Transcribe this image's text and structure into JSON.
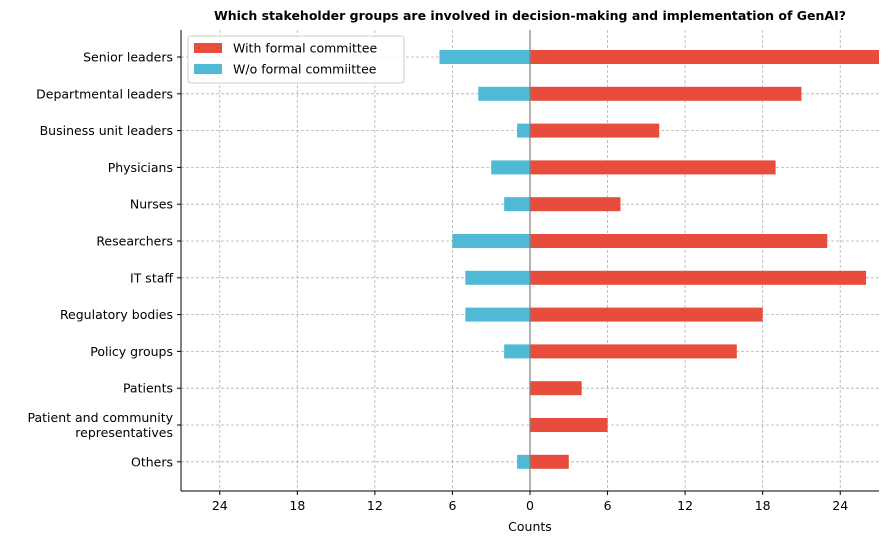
{
  "chart_data": {
    "type": "bar",
    "orientation": "horizontal-diverging",
    "title": "Which stakeholder groups are involved in decision-making and implementation of GenAI?",
    "xlabel": "Counts",
    "ylabel": "",
    "categories": [
      "Senior leaders",
      "Departmental leaders",
      "Business unit leaders",
      "Physicians",
      "Nurses",
      "Researchers",
      "IT staff",
      "Regulatory bodies",
      "Policy groups",
      "Patients",
      [
        "Patient and community",
        "representatives"
      ],
      "Others"
    ],
    "series": [
      {
        "name": "With formal committee",
        "color": "#e74c3c",
        "direction": "right",
        "values": [
          27,
          21,
          10,
          19,
          7,
          23,
          26,
          18,
          16,
          4,
          6,
          3
        ]
      },
      {
        "name": "W/o formal commiittee",
        "color": "#4fb9d6",
        "direction": "left",
        "values": [
          7,
          4,
          1,
          3,
          2,
          6,
          5,
          5,
          2,
          0,
          0,
          1
        ]
      }
    ],
    "xlim": [
      -27,
      27
    ],
    "xticks": [
      -24,
      -18,
      -12,
      -6,
      0,
      6,
      12,
      18,
      24
    ],
    "xtick_labels": [
      "24",
      "18",
      "12",
      "6",
      "0",
      "6",
      "12",
      "18",
      "24"
    ],
    "grid": true,
    "legend_position": "upper-left"
  }
}
